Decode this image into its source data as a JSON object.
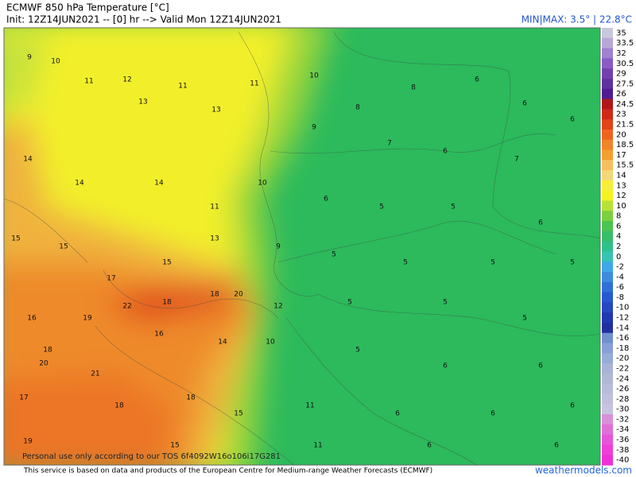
{
  "header": {
    "title": "ECMWF 850 hPa Temperature [°C]",
    "init": "Init: 12Z14JUN2021 -- [0] hr --> Valid Mon 12Z14JUN2021",
    "minmax": "MIN|MAX: 3.5° | 22.8°C"
  },
  "colorbar": {
    "labels": [
      35,
      33.5,
      32,
      30.5,
      29,
      27.5,
      26,
      24.5,
      23,
      21.5,
      20,
      18.5,
      17,
      15.5,
      14,
      13,
      12,
      10,
      8,
      6,
      4,
      2,
      0,
      -2,
      -4,
      -6,
      -8,
      -10,
      -12,
      -14,
      -16,
      -18,
      -20,
      -22,
      -24,
      -26,
      -28,
      -30,
      -32,
      -34,
      -36,
      -38,
      -40
    ]
  },
  "map": {
    "labels": [
      9,
      10,
      11,
      12,
      13,
      11,
      13,
      11,
      10,
      8,
      8,
      6,
      6,
      6,
      9,
      7,
      6,
      7,
      14,
      14,
      14,
      11,
      10,
      6,
      5,
      5,
      6,
      15,
      15,
      17,
      15,
      13,
      9,
      5,
      5,
      5,
      5,
      16,
      19,
      22,
      18,
      18,
      20,
      12,
      5,
      5,
      5,
      18,
      20,
      21,
      16,
      14,
      10,
      5,
      6,
      6,
      17,
      18,
      18,
      15,
      11,
      6,
      6,
      6,
      19,
      15,
      11,
      6,
      6
    ],
    "watermark": "Personal use only according to our TOS 6f4092W16o106i17G281"
  },
  "footer": {
    "disclaimer": "This service is based on data and products of the European Centre for Medium-range Weather Forecasts (ECMWF)",
    "site": "weathermodels.com"
  }
}
